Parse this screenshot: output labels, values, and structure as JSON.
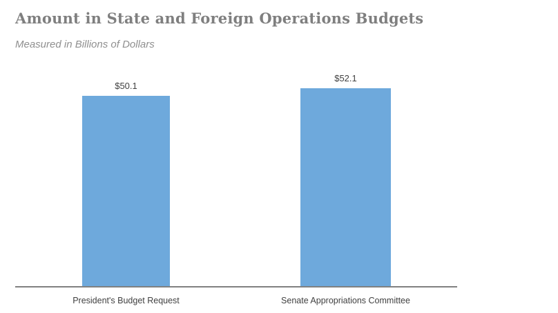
{
  "header": {
    "title": "Amount in State and Foreign Operations Budgets",
    "subtitle": "Measured in Billions of Dollars"
  },
  "chart_data": {
    "type": "bar",
    "title": "Amount in State and Foreign Operations Budgets",
    "subtitle": "Measured in Billions of Dollars",
    "categories": [
      "President's Budget Request",
      "Senate Appropriations Committee"
    ],
    "values": [
      50.1,
      52.1
    ],
    "value_labels": [
      "$50.1",
      "$52.1"
    ],
    "xlabel": "",
    "ylabel": "",
    "ylim": [
      0,
      55
    ],
    "grid": false,
    "legend": false,
    "colors": {
      "bar_fill": "#6EA9DC",
      "axis_line": "#808080",
      "title_text": "#7F7F7F",
      "subtitle_text": "#8F8F8F",
      "label_text": "#404040"
    }
  }
}
